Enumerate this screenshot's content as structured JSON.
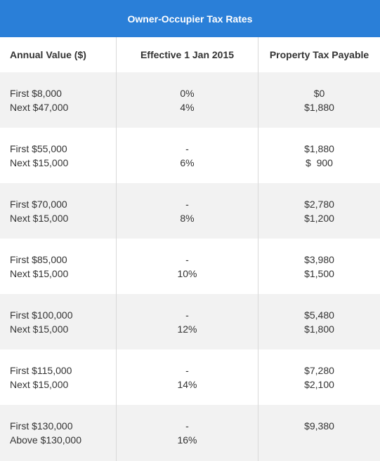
{
  "title": "Owner-Occupier Tax Rates",
  "headers": {
    "annual_value": "Annual Value ($)",
    "effective": "Effective 1 Jan 2015",
    "tax_payable": "Property Tax Payable"
  },
  "rows": [
    {
      "av1": "First $8,000",
      "av2": "Next $47,000",
      "r1": "0%",
      "r2": "4%",
      "t1": "$0",
      "t2": "$1,880"
    },
    {
      "av1": "First $55,000",
      "av2": "Next $15,000",
      "r1": "-",
      "r2": "6%",
      "t1": "$1,880",
      "t2": "$  900"
    },
    {
      "av1": "First $70,000",
      "av2": "Next $15,000",
      "r1": "-",
      "r2": "8%",
      "t1": "$2,780",
      "t2": "$1,200"
    },
    {
      "av1": "First $85,000",
      "av2": "Next $15,000",
      "r1": "-",
      "r2": "10%",
      "t1": "$3,980",
      "t2": "$1,500"
    },
    {
      "av1": "First $100,000",
      "av2": "Next $15,000",
      "r1": "-",
      "r2": "12%",
      "t1": "$5,480",
      "t2": "$1,800"
    },
    {
      "av1": "First $115,000",
      "av2": "Next $15,000",
      "r1": "-",
      "r2": "14%",
      "t1": "$7,280",
      "t2": "$2,100"
    },
    {
      "av1": "First $130,000",
      "av2": "Above $130,000",
      "r1": "-",
      "r2": "16%",
      "t1": "$9,380",
      "t2": ""
    }
  ],
  "colors": {
    "title_bg": "#2a7fd8",
    "shade": "#f2f2f2"
  }
}
